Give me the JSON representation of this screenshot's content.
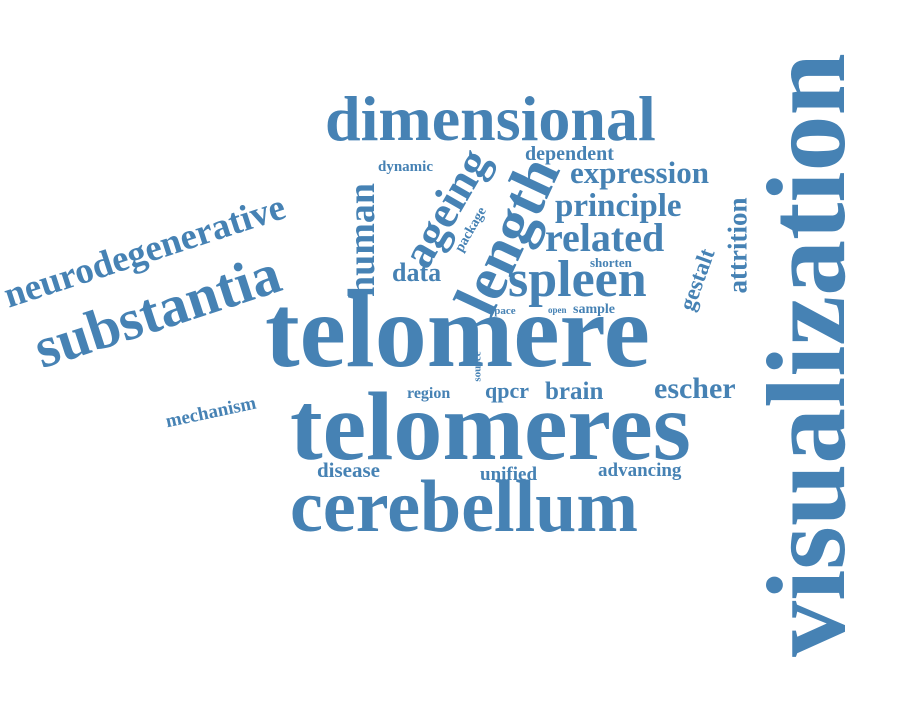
{
  "word_color": "#4682b4",
  "words": {
    "visualization": "visualization",
    "telomere": "telomere",
    "telomeres": "telomeres",
    "cerebellum": "cerebellum",
    "dimensional": "dimensional",
    "substantia": "substantia",
    "neurodegenerative": "neurodegenerative",
    "length": "length",
    "spleen": "spleen",
    "human": "human",
    "ageing": "ageing",
    "related": "related",
    "principle": "principle",
    "expression": "expression",
    "dependent": "dependent",
    "attrition": "attrition",
    "gestalt": "gestalt",
    "escher": "escher",
    "data": "data",
    "dynamic": "dynamic",
    "package": "package",
    "shorten": "shorten",
    "space": "space",
    "open": "open",
    "sample": "sample",
    "cell": "cell",
    "source": "source",
    "region": "region",
    "qpcr": "qpcr",
    "brain": "brain",
    "mechanism": "mechanism",
    "disease": "disease",
    "unified": "unified",
    "advancing": "advancing"
  }
}
